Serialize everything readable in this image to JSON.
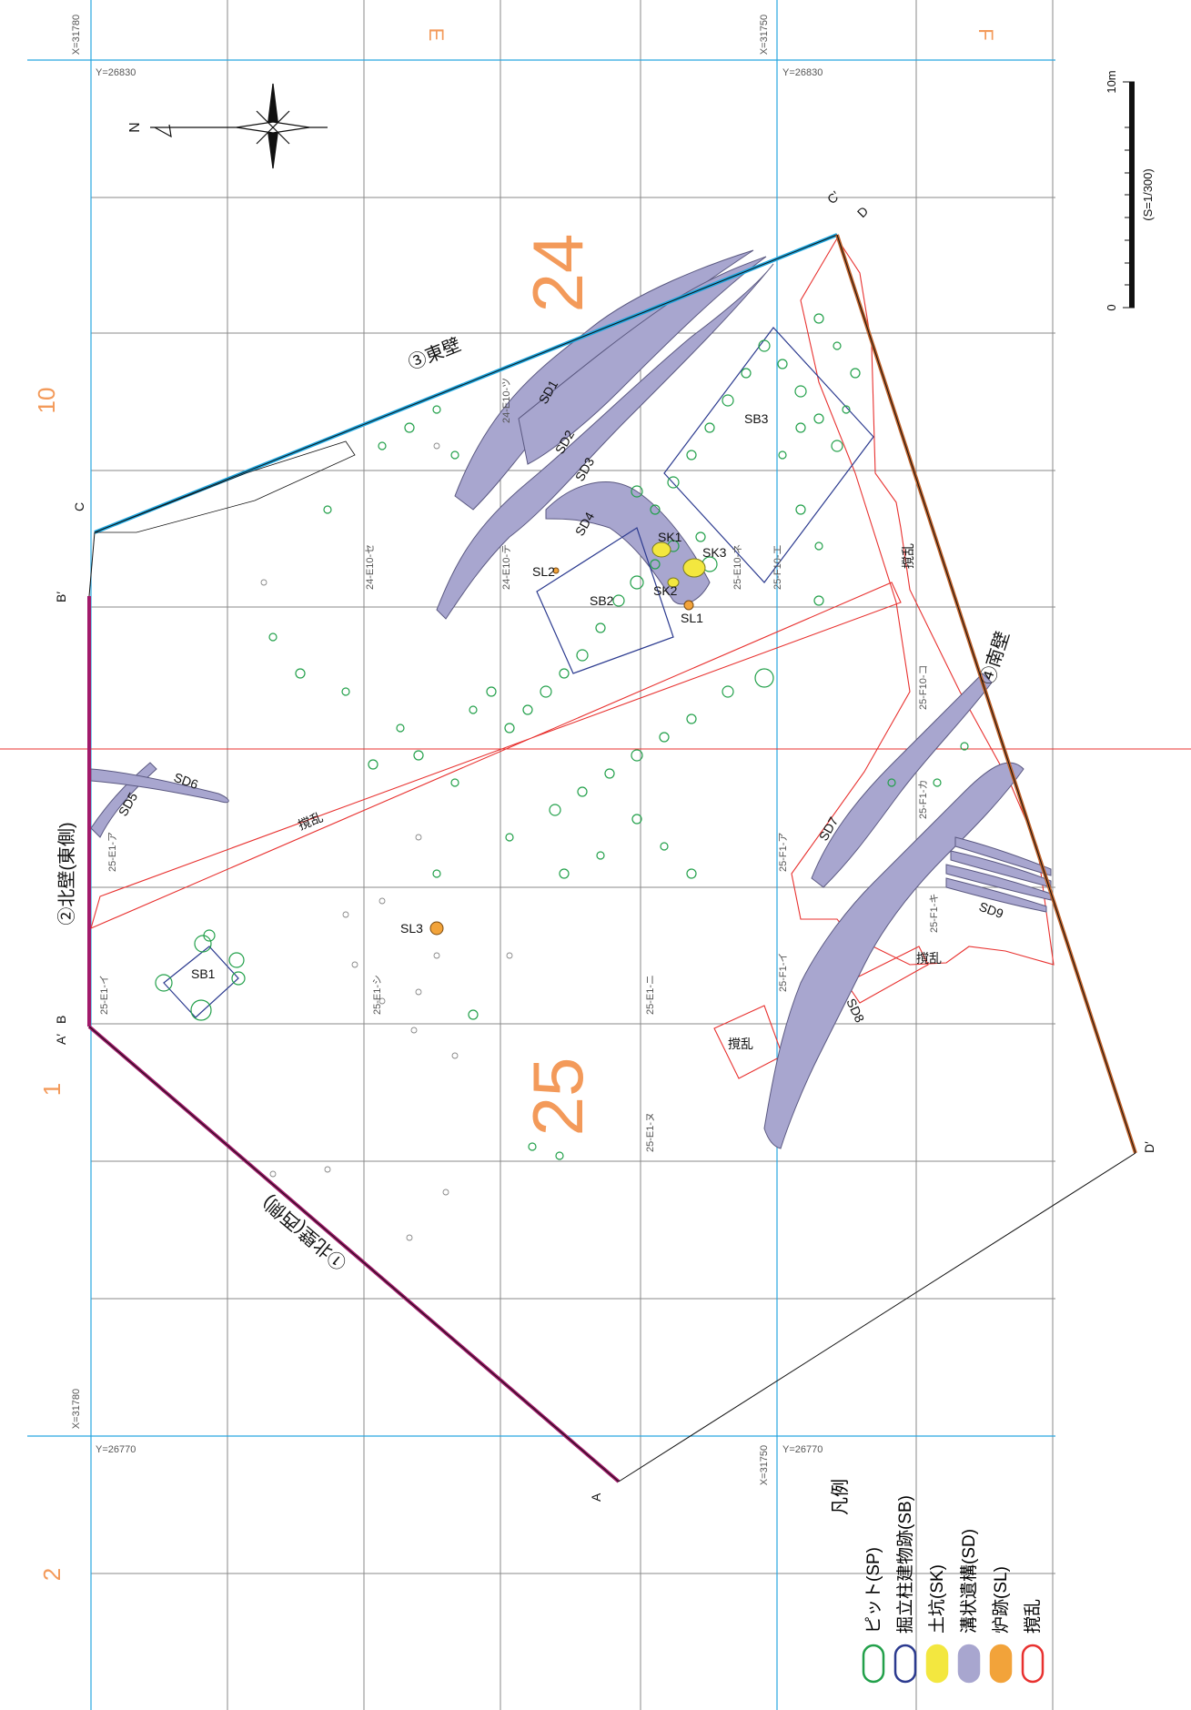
{
  "colors": {
    "grid": "#8a8a8a",
    "survey_line": "#29a6e0",
    "orange_label": "#f39a5a",
    "pit": "#22a04a",
    "building": "#2b3a8f",
    "pit_pos": "#f3e73f",
    "ditch": "#a8a6cf",
    "hearth": "#f2a33a",
    "disturbance": "#e8312f",
    "north_wall": "#a21a6b",
    "east_wall": "#1ea7e0",
    "south_wall": "#c0622a",
    "red_line": "#e8312f"
  },
  "grid_labels": {
    "col_E": "E",
    "col_F": "F",
    "row_10": "10",
    "row_1": "1",
    "row_2": "2"
  },
  "coords": {
    "x_top_left": "X=31780",
    "x_top_right": "X=31750",
    "y_top_left": "Y=26830",
    "y_top_right": "Y=26830",
    "x_bot_left": "X=31780",
    "x_bot_right": "X=31750",
    "y_bot_left": "Y=26770",
    "y_bot_right": "Y=26770"
  },
  "north": {
    "label": "N"
  },
  "scale_bar": {
    "max_label": "10m",
    "min_label": "0",
    "ratio": "(S=1/300)"
  },
  "big_labels": {
    "label_24": "24",
    "label_25": "25"
  },
  "walls": {
    "east": "③東壁",
    "north_east": "②北壁(東側)",
    "north_west": "①北壁(西側)",
    "south": "④南壁"
  },
  "section_points": {
    "c": "C",
    "c_prime": "C′",
    "d": "D",
    "d_prime": "D′",
    "b": "B",
    "b_prime": "B′",
    "a_prime": "A′",
    "a": "A"
  },
  "features": {
    "sd1": "SD1",
    "sd2": "SD2",
    "sd3": "SD3",
    "sd4": "SD4",
    "sd5": "SD5",
    "sd6": "SD6",
    "sd7": "SD7",
    "sd8": "SD8",
    "sd9": "SD9",
    "sb1": "SB1",
    "sb2": "SB2",
    "sb3": "SB3",
    "sk1": "SK1",
    "sk2": "SK2",
    "sk3": "SK3",
    "sl1": "SL1",
    "sl2": "SL2",
    "sl3": "SL3",
    "kakuran_1": "撹乱",
    "kakuran_2": "撹乱",
    "kakuran_3": "撹乱",
    "kakuran_4": "撹乱"
  },
  "grid_cells": {
    "c1": "24-E10-ツ",
    "c2": "24-E10-セ",
    "c3": "24-E10-テ",
    "c4": "25-E10-ネ",
    "c5": "25-F10-エ",
    "c6": "25-F10-コ",
    "c7": "25-F1-カ",
    "c8": "25-F1-ア",
    "c9": "25-F1-キ",
    "c10": "25-F1-イ",
    "c11": "25-E1-ア",
    "c12": "25-E1-イ",
    "c13": "25-E1-シ",
    "c14": "25-E1-ニ",
    "c15": "25-E1-ヌ"
  },
  "legend": {
    "title": "凡例",
    "items": [
      {
        "label": "ピット(SP)",
        "color": "#22a04a",
        "fill": "none"
      },
      {
        "label": "掘立柱建物跡(SB)",
        "color": "#2b3a8f",
        "fill": "none"
      },
      {
        "label": "土坑(SK)",
        "color": "#f3e73f",
        "fill": "#f3e73f"
      },
      {
        "label": "溝状遺構(SD)",
        "color": "#a8a6cf",
        "fill": "#a8a6cf"
      },
      {
        "label": "炉跡(SL)",
        "color": "#f2a33a",
        "fill": "#f2a33a"
      },
      {
        "label": "撹乱",
        "color": "#e8312f",
        "fill": "none"
      }
    ]
  }
}
